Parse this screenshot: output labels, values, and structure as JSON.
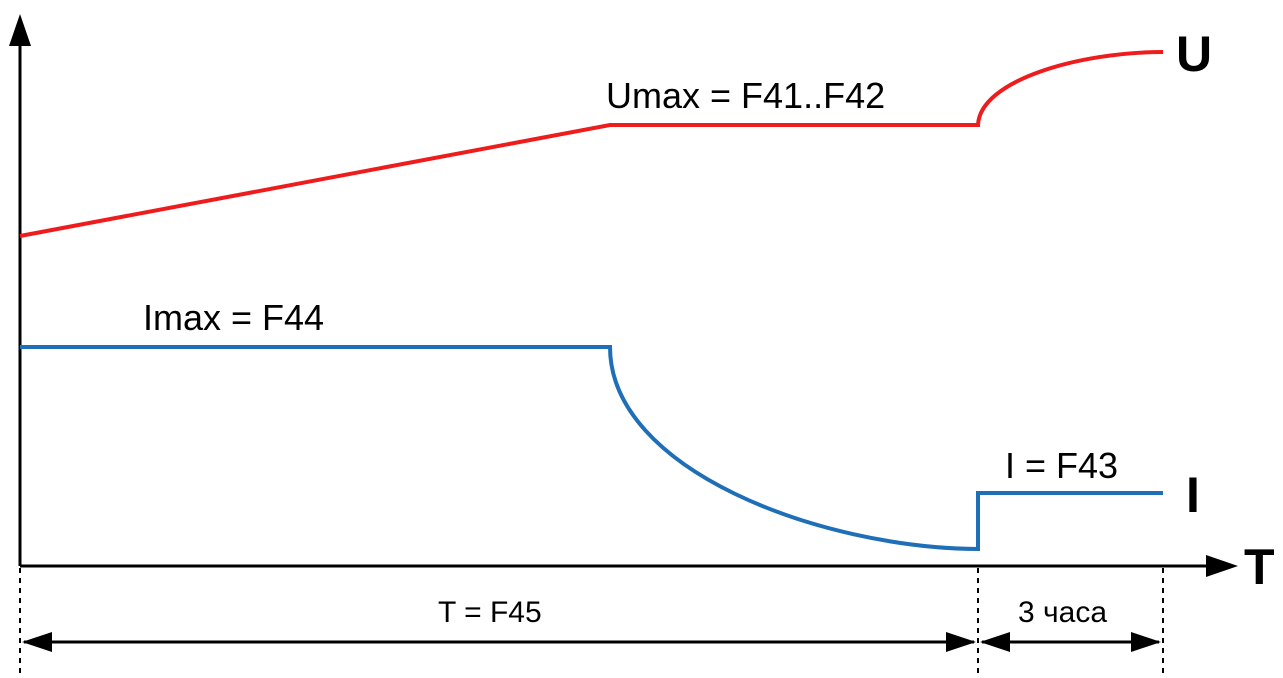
{
  "diagram": {
    "axes": {
      "y_axis_label": "",
      "x_axis_label": "T"
    },
    "voltage": {
      "curve_label": "U",
      "max_label": "Umax = F41..F42",
      "color": "#ee1c1c"
    },
    "current": {
      "curve_label": "I",
      "max_label": "Imax = F44",
      "final_label": "I = F43",
      "color": "#1f6fb8"
    },
    "intervals": {
      "main_label": "T = F45",
      "final_label": "3 часа"
    }
  }
}
